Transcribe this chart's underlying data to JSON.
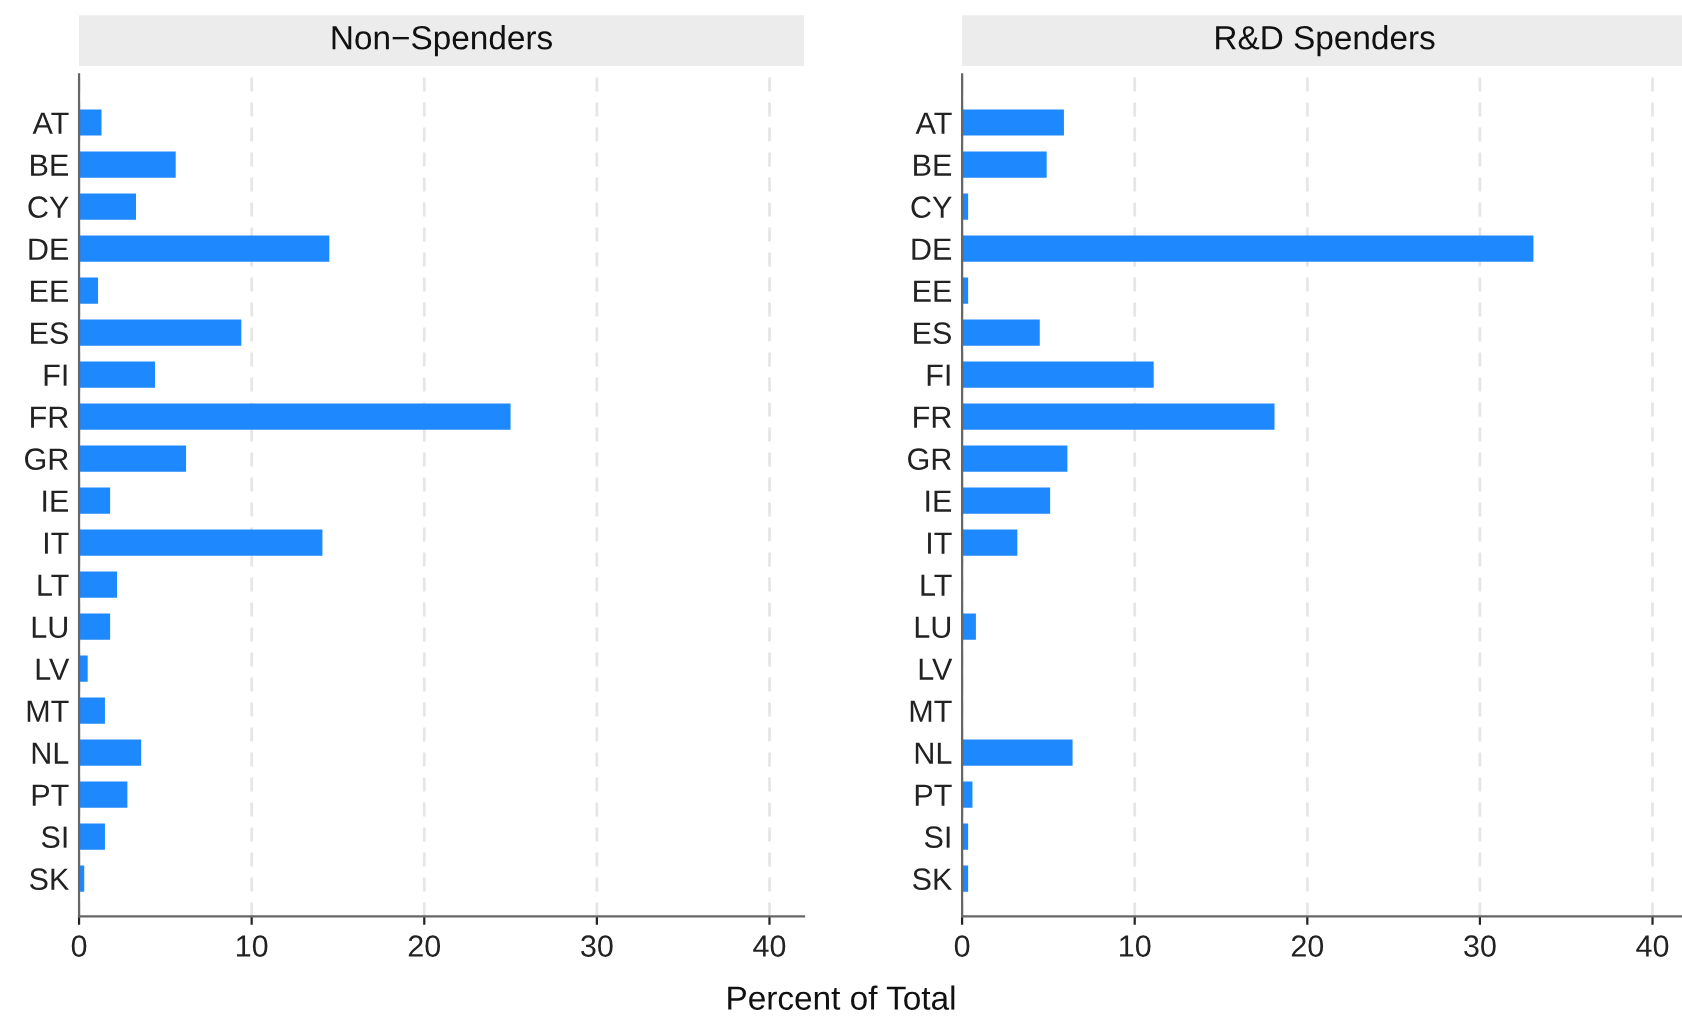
{
  "chart_data": [
    {
      "type": "bar",
      "orientation": "horizontal",
      "title": "Non−Spenders",
      "xlabel": "Percent of Total",
      "categories": [
        "AT",
        "BE",
        "CY",
        "DE",
        "EE",
        "ES",
        "FI",
        "FR",
        "GR",
        "IE",
        "IT",
        "LT",
        "LU",
        "LV",
        "MT",
        "NL",
        "PT",
        "SI",
        "SK"
      ],
      "values": [
        1.3,
        5.6,
        3.3,
        14.5,
        1.1,
        9.4,
        4.4,
        25.0,
        6.2,
        1.8,
        14.1,
        2.2,
        1.8,
        0.5,
        1.5,
        3.6,
        2.8,
        1.5,
        0.3
      ],
      "color": "#1e88ff",
      "xlim": [
        0,
        42
      ],
      "xticks": [
        0,
        10,
        20,
        30,
        40
      ],
      "grid": "x"
    },
    {
      "type": "bar",
      "orientation": "horizontal",
      "title": "R&D Spenders",
      "categories": [
        "AT",
        "BE",
        "CY",
        "DE",
        "EE",
        "ES",
        "FI",
        "FR",
        "GR",
        "IE",
        "IT",
        "LT",
        "LU",
        "LV",
        "MT",
        "NL",
        "PT",
        "SI",
        "SK"
      ],
      "values": [
        5.9,
        4.9,
        0.35,
        33.1,
        0.35,
        4.5,
        11.1,
        18.1,
        6.1,
        5.1,
        3.2,
        0,
        0.8,
        0,
        0,
        6.4,
        0.6,
        0.35,
        0.35
      ],
      "color": "#1e88ff",
      "xlim": [
        0,
        42
      ],
      "xticks": [
        0,
        10,
        20,
        30,
        40
      ],
      "grid": "x"
    }
  ]
}
